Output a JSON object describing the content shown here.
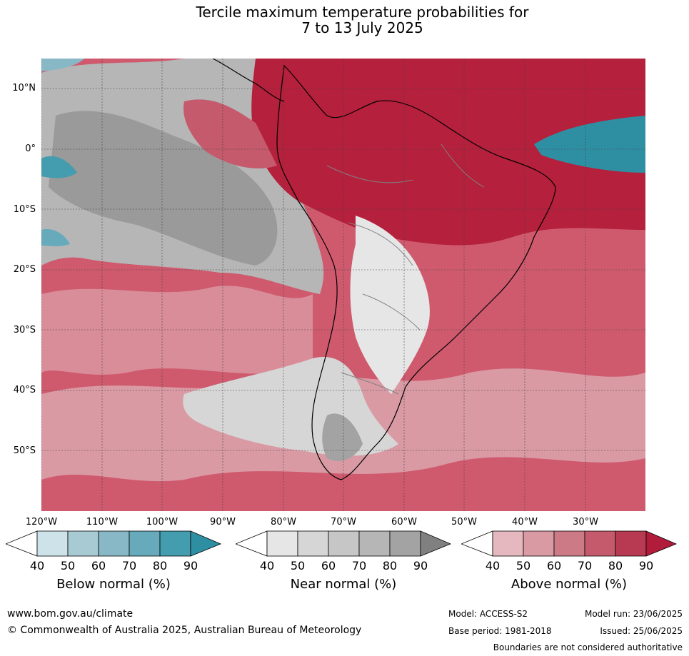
{
  "title": {
    "line1": "Tercile maximum temperature probabilities for",
    "line2": "7 to 13 July 2025"
  },
  "map": {
    "lat_labels": [
      "10°N",
      "0°",
      "10°S",
      "20°S",
      "30°S",
      "40°S",
      "50°S"
    ],
    "lon_labels": [
      "120°W",
      "110°W",
      "100°W",
      "90°W",
      "80°W",
      "70°W",
      "60°W",
      "50°W",
      "40°W",
      "30°W"
    ],
    "colors": {
      "above_dominant": "#b5203c",
      "ocean_base": "#cf5a6e",
      "near_normal_grey": "#9a9a9a",
      "below_teal": "#2e8fa3",
      "coastline": "#000000",
      "borders": "#808080"
    }
  },
  "legends": [
    {
      "title": "Below normal (%)",
      "ticks": [
        "40",
        "50",
        "60",
        "70",
        "80",
        "90"
      ],
      "colors": [
        "#ffffff",
        "#cde3e9",
        "#a8cad3",
        "#88b8c6",
        "#66aabb",
        "#449dae",
        "#2e8fa3"
      ]
    },
    {
      "title": "Near normal (%)",
      "ticks": [
        "40",
        "50",
        "60",
        "70",
        "80",
        "90"
      ],
      "colors": [
        "#ffffff",
        "#e6e6e6",
        "#d6d6d6",
        "#c6c6c6",
        "#b6b6b6",
        "#a3a3a3",
        "#808080"
      ]
    },
    {
      "title": "Above normal (%)",
      "ticks": [
        "40",
        "50",
        "60",
        "70",
        "80",
        "90"
      ],
      "colors": [
        "#ffffff",
        "#e5b8bf",
        "#d99aa4",
        "#cd7a87",
        "#c45a6c",
        "#b83a52",
        "#b01c3a"
      ]
    }
  ],
  "footer": {
    "website": "www.bom.gov.au/climate",
    "copyright": "© Commonwealth of Australia 2025, Australian Bureau of Meteorology",
    "model": "Model: ACCESS-S2",
    "base_period": "Base period: 1981-2018",
    "model_run": "Model run: 23/06/2025",
    "issued": "Issued: 25/06/2025",
    "disclaimer": "Boundaries are not considered authoritative"
  }
}
